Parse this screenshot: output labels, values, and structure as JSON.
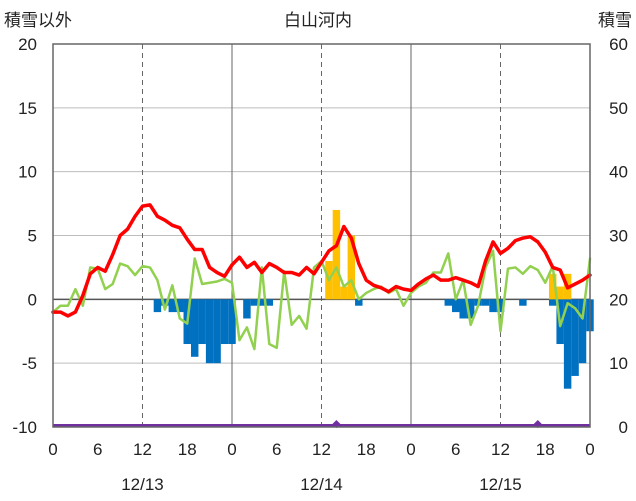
{
  "chart_data": {
    "type": "bar+line",
    "title": "白山河内",
    "left_axis_label": "積雪以外",
    "right_axis_label": "積雪",
    "left_ylim": [
      -10,
      20
    ],
    "left_ticks": [
      "20",
      "15",
      "10",
      "5",
      "0",
      "-5",
      "-10"
    ],
    "right_ylim": [
      0,
      60
    ],
    "right_ticks": [
      "60",
      "50",
      "40",
      "30",
      "20",
      "10",
      "0"
    ],
    "x_tick_labels": [
      "0",
      "6",
      "12",
      "18",
      "0",
      "6",
      "12",
      "18",
      "0",
      "6",
      "12",
      "18",
      "0"
    ],
    "date_labels": [
      "12/13",
      "12/14",
      "12/15"
    ],
    "grid": true,
    "red_line": [
      -1.0,
      -1.0,
      -1.3,
      -1.0,
      0.3,
      2.0,
      2.5,
      2.2,
      3.5,
      5.0,
      5.5,
      6.5,
      7.3,
      7.4,
      6.5,
      6.2,
      5.8,
      5.6,
      4.7,
      3.9,
      3.9,
      2.5,
      2.1,
      1.8,
      2.7,
      3.3,
      2.5,
      2.9,
      2.1,
      2.8,
      2.5,
      2.1,
      2.1,
      1.9,
      2.5,
      2.0,
      2.9,
      3.8,
      4.2,
      5.7,
      4.8,
      2.8,
      1.5,
      1.1,
      0.9,
      0.6,
      1.0,
      0.8,
      0.7,
      1.2,
      1.6,
      1.9,
      1.5,
      1.5,
      1.7,
      1.5,
      1.3,
      1.0,
      3.0,
      4.5,
      3.6,
      4.0,
      4.6,
      4.8,
      4.9,
      4.5,
      3.7,
      2.5,
      2.3,
      0.9,
      1.2,
      1.5,
      1.9
    ],
    "green_line": [
      -1.0,
      -0.5,
      -0.5,
      0.8,
      -0.5,
      2.5,
      2.4,
      0.8,
      1.2,
      2.8,
      2.6,
      1.9,
      2.6,
      2.5,
      1.5,
      -0.8,
      1.1,
      -1.5,
      -1.9,
      3.2,
      1.2,
      1.3,
      1.4,
      1.6,
      1.3,
      -3.2,
      -2.2,
      -3.9,
      2.5,
      -3.5,
      -3.8,
      2.2,
      -2.0,
      -1.3,
      -2.3,
      2.5,
      3.0,
      1.5,
      2.5,
      1.0,
      1.5,
      0.0,
      0.5,
      0.8,
      1.0,
      0.5,
      0.8,
      -0.5,
      0.5,
      1.0,
      1.3,
      2.1,
      2.1,
      3.6,
      0.0,
      1.5,
      -2.0,
      -0.5,
      2.5,
      3.8,
      -2.5,
      2.4,
      2.5,
      2.0,
      2.6,
      2.3,
      1.3,
      2.6,
      -2.1,
      -0.3,
      -0.7,
      -1.5,
      3.2
    ],
    "blue_bars": [
      0,
      0,
      0,
      0,
      0,
      0,
      0,
      0,
      0,
      0,
      0,
      0,
      0,
      0,
      -1.0,
      -0.5,
      -1.0,
      -1.0,
      -3.5,
      -4.5,
      -3.5,
      -5.0,
      -5.0,
      -3.5,
      -3.5,
      0,
      -1.5,
      -0.5,
      -0.5,
      -0.5,
      0,
      0,
      0,
      0,
      0,
      0,
      0,
      0,
      0,
      0,
      0,
      -0.5,
      0,
      0,
      0,
      0,
      0,
      0,
      0,
      0,
      0,
      0,
      0,
      -0.5,
      -1.0,
      -1.5,
      -1.5,
      -0.5,
      -0.5,
      -1.0,
      -1.0,
      0,
      0,
      -0.5,
      0,
      0,
      0,
      -0.5,
      -3.5,
      -7.0,
      -6.0,
      -5.0,
      -2.5
    ],
    "orange_bars": [
      0,
      0,
      0,
      0,
      0,
      0,
      0,
      0,
      0,
      0,
      0,
      0,
      0,
      0,
      0,
      0,
      0,
      0,
      0,
      0,
      0,
      0,
      0,
      0,
      0,
      0,
      0,
      0,
      0,
      0,
      0,
      0,
      0,
      0,
      0,
      0,
      0,
      3.0,
      7.0,
      1.0,
      5.0,
      0,
      0,
      0,
      0,
      0,
      0,
      0,
      0,
      0,
      0,
      0,
      0,
      0,
      0,
      0,
      0,
      0,
      0,
      0,
      0,
      0,
      0,
      0,
      0,
      0,
      0,
      2.0,
      1.0,
      2.0,
      0,
      0,
      0
    ],
    "purple_markers": [
      38,
      65
    ]
  }
}
